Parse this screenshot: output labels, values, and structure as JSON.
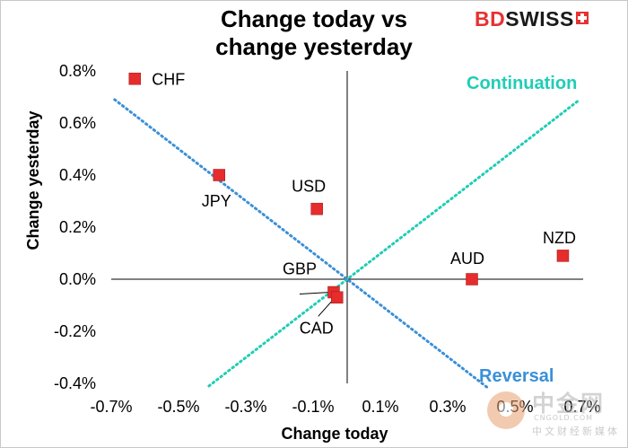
{
  "header": {
    "title_line1": "Change today vs",
    "title_line2": "change yesterday",
    "logo_bd": "BD",
    "logo_swiss": "SWISS"
  },
  "watermark": {
    "chinese": "中金网",
    "domain": "CNGOLD.COM",
    "subtitle": "中文财经新媒体"
  },
  "chart_data": {
    "type": "scatter",
    "title": "Change today vs change yesterday",
    "xlabel": "Change today",
    "ylabel": "Change yesterday",
    "xlim": [
      -0.7,
      0.7
    ],
    "ylim": [
      -0.4,
      0.8
    ],
    "x_ticks": [
      "-0.7%",
      "-0.5%",
      "-0.3%",
      "-0.1%",
      "0.1%",
      "0.3%",
      "0.5%",
      "0.7%"
    ],
    "y_ticks": [
      "0.8%",
      "0.6%",
      "0.4%",
      "0.2%",
      "0.0%",
      "-0.2%",
      "-0.4%"
    ],
    "grid": false,
    "point_color": "#e62c2c",
    "points": [
      {
        "label": "CHF",
        "x": -0.63,
        "y": 0.77
      },
      {
        "label": "JPY",
        "x": -0.38,
        "y": 0.4
      },
      {
        "label": "USD",
        "x": -0.09,
        "y": 0.27
      },
      {
        "label": "GBP",
        "x": -0.04,
        "y": -0.05
      },
      {
        "label": "CAD",
        "x": -0.03,
        "y": -0.07
      },
      {
        "label": "AUD",
        "x": 0.37,
        "y": 0.0
      },
      {
        "label": "NZD",
        "x": 0.64,
        "y": 0.09
      }
    ],
    "lines": [
      {
        "name": "Continuation",
        "color": "#1fcdb4",
        "from": [
          -0.41,
          -0.41
        ],
        "to": [
          0.69,
          0.69
        ]
      },
      {
        "name": "Reversal",
        "color": "#3a90d8",
        "from": [
          -0.69,
          0.69
        ],
        "to": [
          0.42,
          -0.42
        ]
      }
    ]
  }
}
